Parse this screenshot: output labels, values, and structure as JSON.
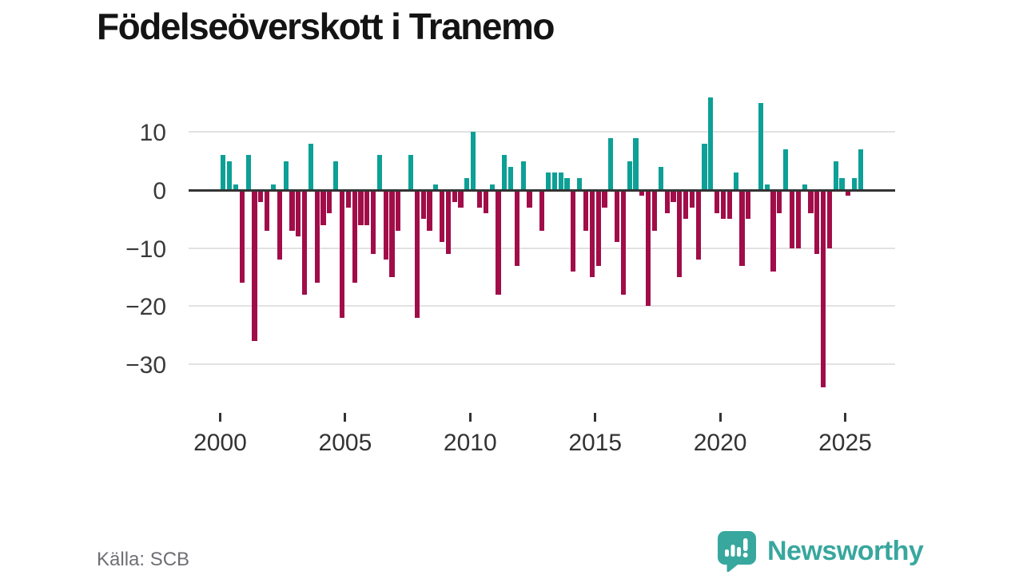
{
  "title": "Födelseöverskott i Tranemo",
  "source": "Källa: SCB",
  "branding": {
    "name": "Newsworthy",
    "icon": "bar-chart-speech-bubble-icon",
    "color": "#38a79e"
  },
  "colors": {
    "positive": "#0da096",
    "negative": "#a10d49",
    "axis": "#333333",
    "grid": "#e2e2e2",
    "tick_label": "#333333",
    "source_text": "#6f6f74"
  },
  "chart_data": {
    "type": "bar",
    "title": "Födelseöverskott i Tranemo",
    "unit": "quarter",
    "start_year": 2000,
    "start_quarter": 1,
    "end_label": "2025 Q3",
    "grid": "horizontal",
    "legend": "none",
    "ylim": [
      -35,
      17
    ],
    "y_ticks": [
      {
        "label": "10",
        "value": 10
      },
      {
        "label": "0",
        "value": 0
      },
      {
        "label": "−10",
        "value": -10
      },
      {
        "label": "−20",
        "value": -20
      },
      {
        "label": "−30",
        "value": -30
      }
    ],
    "x_ticks": [
      {
        "label": "2000",
        "year": 2000
      },
      {
        "label": "2005",
        "year": 2005
      },
      {
        "label": "2010",
        "year": 2010
      },
      {
        "label": "2015",
        "year": 2015
      },
      {
        "label": "2020",
        "year": 2020
      },
      {
        "label": "2025",
        "year": 2025
      }
    ],
    "values": [
      6,
      5,
      1,
      -16,
      6,
      -26,
      -2,
      -7,
      1,
      -12,
      5,
      -7,
      -8,
      -18,
      8,
      -16,
      -6,
      -4,
      5,
      -22,
      -3,
      -16,
      -6,
      -6,
      -11,
      6,
      -12,
      -15,
      -7,
      0,
      6,
      -22,
      -5,
      -7,
      1,
      -9,
      -11,
      -2,
      -3,
      2,
      10,
      -3,
      -4,
      1,
      -18,
      6,
      4,
      -13,
      5,
      -3,
      0,
      -7,
      3,
      3,
      3,
      2,
      -14,
      2,
      -7,
      -15,
      -13,
      -3,
      9,
      -9,
      -18,
      5,
      9,
      -1,
      -20,
      -7,
      4,
      -4,
      -2,
      -15,
      -5,
      -3,
      -12,
      8,
      16,
      -4,
      -5,
      -5,
      3,
      -13,
      -5,
      0,
      15,
      1,
      -14,
      -4,
      7,
      -10,
      -10,
      1,
      -4,
      -11,
      -34,
      -10,
      5,
      2,
      -1,
      2,
      7
    ]
  }
}
